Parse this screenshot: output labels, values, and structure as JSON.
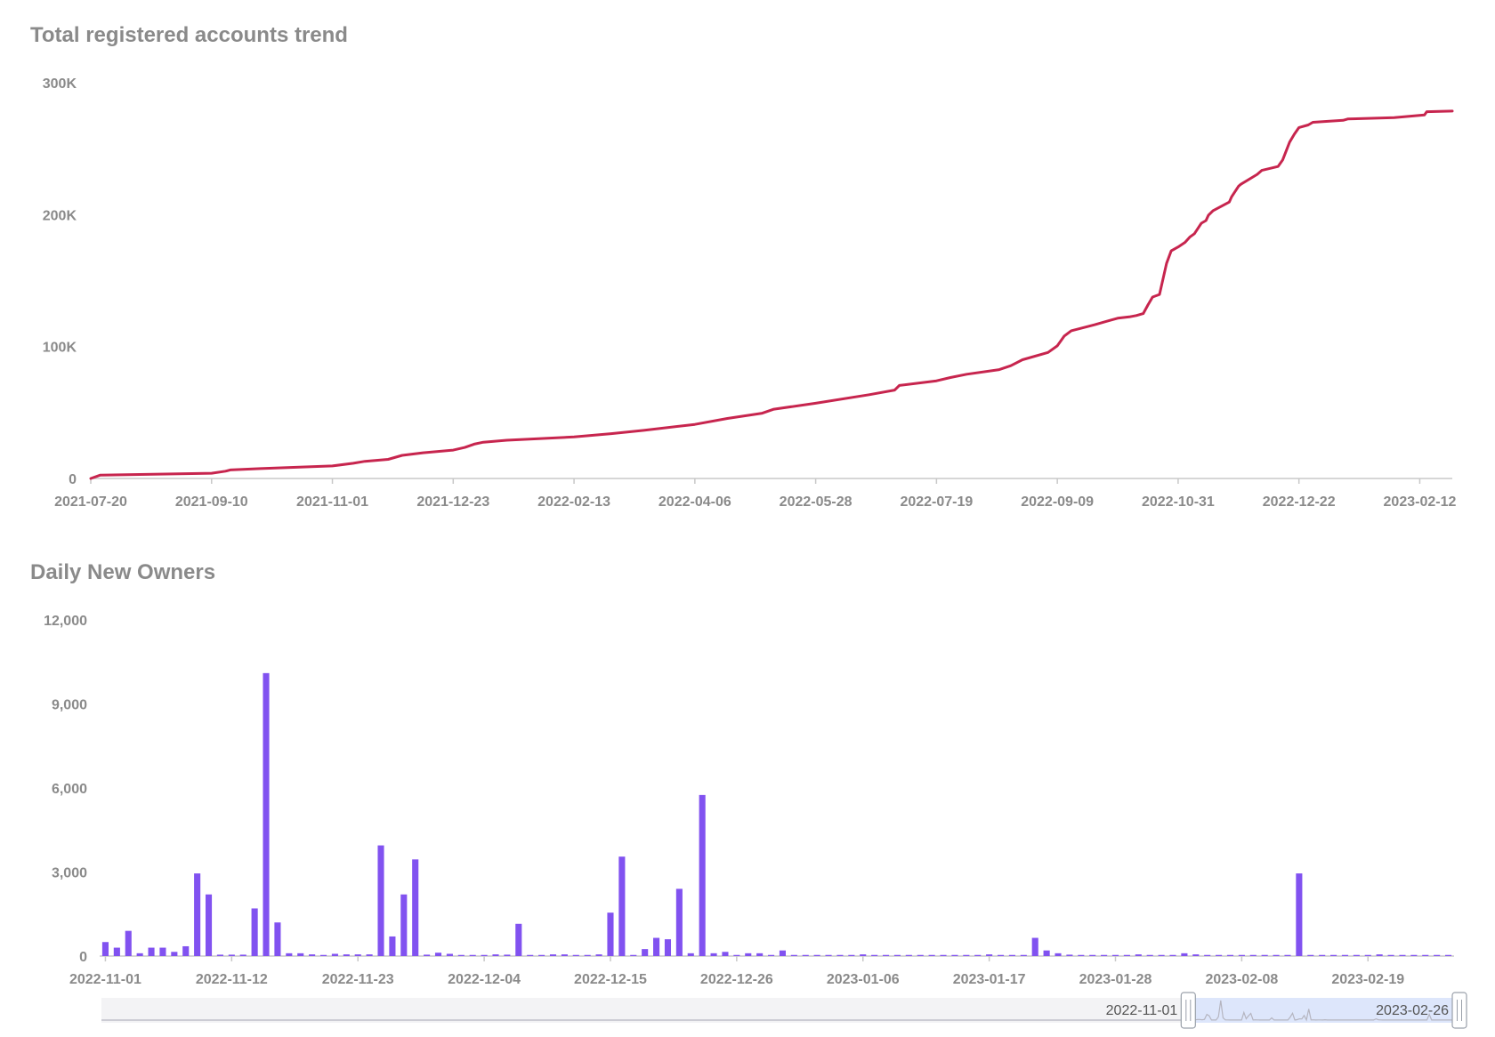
{
  "colors": {
    "line": "#c7254e",
    "bar": "#8152f0",
    "axis": "#c8c8c8",
    "label": "#8a8a8a",
    "zoom_bg": "#f3f3f5",
    "zoom_sel": "#dde6fb",
    "zoom_line": "#b5b5c0"
  },
  "chart_data": [
    {
      "type": "line",
      "title": "Total registered accounts trend",
      "xlabel": "",
      "ylabel": "",
      "x_range": [
        "2021-07-20",
        "2023-02-26"
      ],
      "ylim": [
        0,
        300000
      ],
      "y_ticks": [
        0,
        100000,
        200000,
        300000
      ],
      "y_tick_labels": [
        "0",
        "100K",
        "200K",
        "300K"
      ],
      "x_ticks": [
        "2021-07-20",
        "2021-09-10",
        "2021-11-01",
        "2021-12-23",
        "2022-02-13",
        "2022-04-06",
        "2022-05-28",
        "2022-07-19",
        "2022-09-09",
        "2022-10-31",
        "2022-12-22",
        "2023-02-12"
      ],
      "grid": false,
      "series": [
        {
          "x": [
            "2021-07-20",
            "2021-07-24",
            "2021-08-10",
            "2021-09-10",
            "2021-09-16",
            "2021-09-18",
            "2021-10-01",
            "2021-11-01",
            "2021-11-10",
            "2021-11-15",
            "2021-11-25",
            "2021-12-01",
            "2021-12-10",
            "2021-12-23",
            "2021-12-28",
            "2022-01-01",
            "2022-01-05",
            "2022-01-15",
            "2022-02-13",
            "2022-03-01",
            "2022-03-15",
            "2022-04-06",
            "2022-04-20",
            "2022-05-05",
            "2022-05-10",
            "2022-05-28",
            "2022-06-20",
            "2022-07-01",
            "2022-07-03",
            "2022-07-19",
            "2022-07-25",
            "2022-08-01",
            "2022-08-15",
            "2022-08-20",
            "2022-08-25",
            "2022-09-05",
            "2022-09-09",
            "2022-09-12",
            "2022-09-15",
            "2022-09-25",
            "2022-10-01",
            "2022-10-05",
            "2022-10-10",
            "2022-10-13",
            "2022-10-16",
            "2022-10-18",
            "2022-10-20",
            "2022-10-23",
            "2022-10-26",
            "2022-10-28",
            "2022-10-31",
            "2022-11-03",
            "2022-11-05",
            "2022-11-07",
            "2022-11-10",
            "2022-11-12",
            "2022-11-13",
            "2022-11-15",
            "2022-11-22",
            "2022-11-23",
            "2022-11-26",
            "2022-11-27",
            "2022-12-04",
            "2022-12-06",
            "2022-12-13",
            "2022-12-14",
            "2022-12-15",
            "2022-12-18",
            "2022-12-20",
            "2022-12-22",
            "2022-12-26",
            "2022-12-28",
            "2023-01-10",
            "2023-01-12",
            "2023-02-01",
            "2023-02-14",
            "2023-02-15",
            "2023-02-26"
          ],
          "y": [
            0,
            2500,
            3000,
            4000,
            5500,
            6500,
            7500,
            9500,
            11500,
            13000,
            14500,
            17500,
            19500,
            21500,
            23500,
            26000,
            27500,
            29000,
            31500,
            34000,
            36500,
            41000,
            45500,
            49500,
            52500,
            57000,
            63500,
            67000,
            70500,
            74000,
            76500,
            79000,
            82500,
            85500,
            90000,
            95500,
            100500,
            108000,
            112000,
            116500,
            119500,
            121500,
            122500,
            123500,
            125000,
            131500,
            137500,
            139500,
            163000,
            172500,
            175500,
            179000,
            183000,
            185500,
            193500,
            195500,
            199500,
            203000,
            209500,
            213500,
            221500,
            223000,
            230500,
            233500,
            236500,
            239000,
            241500,
            255000,
            261000,
            266000,
            268000,
            270000,
            271500,
            272500,
            273500,
            275500,
            278000,
            278500
          ]
        }
      ]
    },
    {
      "type": "bar",
      "title": "Daily New Owners",
      "xlabel": "",
      "ylabel": "",
      "x_range": [
        "2022-11-01",
        "2023-02-26"
      ],
      "ylim": [
        0,
        12000
      ],
      "y_ticks": [
        0,
        3000,
        6000,
        9000,
        12000
      ],
      "y_tick_labels": [
        "0",
        "3,000",
        "6,000",
        "9,000",
        "12,000"
      ],
      "x_ticks": [
        "2022-11-01",
        "2022-11-12",
        "2022-11-23",
        "2022-12-04",
        "2022-12-15",
        "2022-12-26",
        "2023-01-06",
        "2023-01-17",
        "2023-01-28",
        "2023-02-08",
        "2023-02-19"
      ],
      "grid": false,
      "series": [
        {
          "x": [
            "2022-11-01",
            "2022-11-02",
            "2022-11-03",
            "2022-11-04",
            "2022-11-05",
            "2022-11-06",
            "2022-11-07",
            "2022-11-08",
            "2022-11-09",
            "2022-11-10",
            "2022-11-11",
            "2022-11-12",
            "2022-11-13",
            "2022-11-14",
            "2022-11-15",
            "2022-11-16",
            "2022-11-17",
            "2022-11-18",
            "2022-11-19",
            "2022-11-20",
            "2022-11-21",
            "2022-11-22",
            "2022-11-23",
            "2022-11-24",
            "2022-11-25",
            "2022-11-26",
            "2022-11-27",
            "2022-11-28",
            "2022-11-29",
            "2022-11-30",
            "2022-12-01",
            "2022-12-02",
            "2022-12-03",
            "2022-12-04",
            "2022-12-05",
            "2022-12-06",
            "2022-12-07",
            "2022-12-08",
            "2022-12-09",
            "2022-12-10",
            "2022-12-11",
            "2022-12-12",
            "2022-12-13",
            "2022-12-14",
            "2022-12-15",
            "2022-12-16",
            "2022-12-17",
            "2022-12-18",
            "2022-12-19",
            "2022-12-20",
            "2022-12-21",
            "2022-12-22",
            "2022-12-23",
            "2022-12-24",
            "2022-12-25",
            "2022-12-26",
            "2022-12-27",
            "2022-12-28",
            "2022-12-29",
            "2022-12-30",
            "2022-12-31",
            "2023-01-01",
            "2023-01-02",
            "2023-01-03",
            "2023-01-04",
            "2023-01-05",
            "2023-01-06",
            "2023-01-07",
            "2023-01-08",
            "2023-01-09",
            "2023-01-10",
            "2023-01-11",
            "2023-01-12",
            "2023-01-13",
            "2023-01-14",
            "2023-01-15",
            "2023-01-16",
            "2023-01-17",
            "2023-01-18",
            "2023-01-19",
            "2023-01-20",
            "2023-01-21",
            "2023-01-22",
            "2023-01-23",
            "2023-01-24",
            "2023-01-25",
            "2023-01-26",
            "2023-01-27",
            "2023-01-28",
            "2023-01-29",
            "2023-01-30",
            "2023-01-31",
            "2023-02-01",
            "2023-02-02",
            "2023-02-03",
            "2023-02-04",
            "2023-02-05",
            "2023-02-06",
            "2023-02-07",
            "2023-02-08",
            "2023-02-09",
            "2023-02-10",
            "2023-02-11",
            "2023-02-12",
            "2023-02-13",
            "2023-02-14",
            "2023-02-15",
            "2023-02-16",
            "2023-02-17",
            "2023-02-18",
            "2023-02-19",
            "2023-02-20",
            "2023-02-21",
            "2023-02-22",
            "2023-02-23",
            "2023-02-24",
            "2023-02-25",
            "2023-02-26"
          ],
          "values": [
            500,
            300,
            900,
            100,
            300,
            300,
            150,
            350,
            2950,
            2200,
            50,
            50,
            50,
            1700,
            10100,
            1200,
            100,
            100,
            60,
            40,
            80,
            60,
            60,
            60,
            3950,
            700,
            2200,
            3450,
            50,
            120,
            80,
            40,
            40,
            40,
            60,
            50,
            1150,
            40,
            40,
            60,
            60,
            40,
            40,
            60,
            1550,
            3550,
            40,
            250,
            650,
            600,
            2400,
            100,
            5750,
            100,
            150,
            40,
            100,
            100,
            40,
            200,
            40,
            40,
            40,
            40,
            40,
            40,
            60,
            40,
            40,
            40,
            40,
            40,
            40,
            40,
            40,
            40,
            40,
            60,
            40,
            40,
            40,
            650,
            200,
            100,
            50,
            40,
            40,
            40,
            40,
            40,
            60,
            40,
            40,
            40,
            100,
            60,
            40,
            40,
            40,
            40,
            40,
            40,
            40,
            40,
            2950,
            40,
            40,
            40,
            40,
            40,
            40,
            60,
            40,
            40,
            40,
            40,
            40,
            40
          ]
        }
      ],
      "zoom_slider": {
        "start_label": "2022-11-01",
        "end_label": "2023-02-26",
        "full_range": [
          "2021-07-20",
          "2023-02-26"
        ],
        "selected_range": [
          "2022-11-01",
          "2023-02-26"
        ]
      }
    }
  ]
}
